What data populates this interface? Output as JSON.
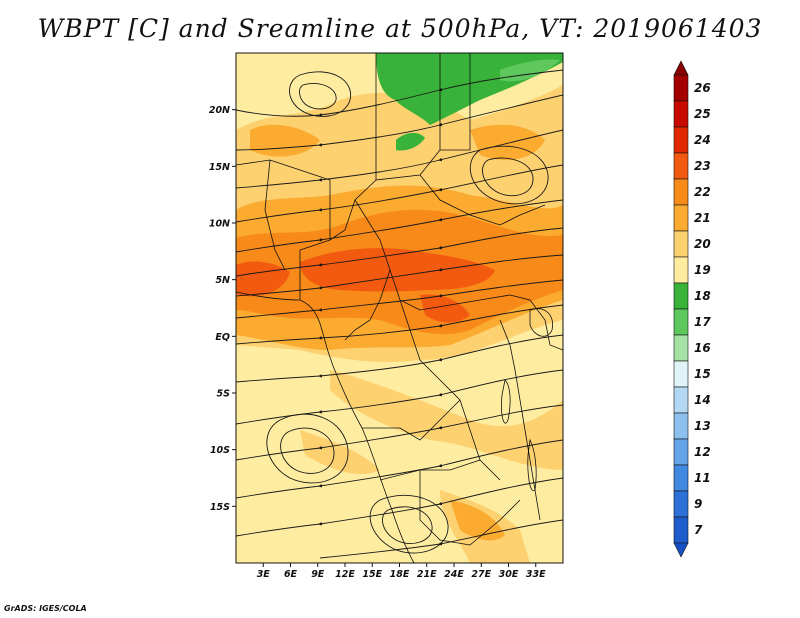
{
  "title": "WBPT [C] and Sreamline at 500hPa, VT: 2019061403",
  "footer": "GrADS: IGES/COLA",
  "map": {
    "lon_range": [
      0,
      36
    ],
    "lat_range": [
      -20,
      25
    ],
    "lat_ticks": [
      {
        "value": 20,
        "label": "20N"
      },
      {
        "value": 15,
        "label": "15N"
      },
      {
        "value": 10,
        "label": "10N"
      },
      {
        "value": 5,
        "label": "5N"
      },
      {
        "value": 0,
        "label": "EQ"
      },
      {
        "value": -5,
        "label": "5S"
      },
      {
        "value": -10,
        "label": "10S"
      },
      {
        "value": -15,
        "label": "15S"
      }
    ],
    "lon_ticks": [
      {
        "value": 3,
        "label": "3E"
      },
      {
        "value": 6,
        "label": "6E"
      },
      {
        "value": 9,
        "label": "9E"
      },
      {
        "value": 12,
        "label": "12E"
      },
      {
        "value": 15,
        "label": "15E"
      },
      {
        "value": 18,
        "label": "18E"
      },
      {
        "value": 21,
        "label": "21E"
      },
      {
        "value": 24,
        "label": "24E"
      },
      {
        "value": 27,
        "label": "27E"
      },
      {
        "value": 30,
        "label": "30E"
      },
      {
        "value": 33,
        "label": "33E"
      }
    ]
  },
  "colorbar": {
    "levels": [
      {
        "label": "26",
        "color": "#a50000"
      },
      {
        "label": "25",
        "color": "#c80a00"
      },
      {
        "label": "24",
        "color": "#e22800"
      },
      {
        "label": "23",
        "color": "#f25a10"
      },
      {
        "label": "22",
        "color": "#f78a18"
      },
      {
        "label": "21",
        "color": "#fbab30"
      },
      {
        "label": "20",
        "color": "#fdd070"
      },
      {
        "label": "19",
        "color": "#feeca0"
      },
      {
        "label": "18",
        "color": "#38b238"
      },
      {
        "label": "17",
        "color": "#5ec85e"
      },
      {
        "label": "16",
        "color": "#a6e2a6"
      },
      {
        "label": "15",
        "color": "#e0f4f8"
      },
      {
        "label": "14",
        "color": "#b4d8f4"
      },
      {
        "label": "13",
        "color": "#8cc0ee"
      },
      {
        "label": "12",
        "color": "#64a4e8"
      },
      {
        "label": "11",
        "color": "#4088e0"
      },
      {
        "label": "9",
        "color": "#2c70d8"
      },
      {
        "label": "7",
        "color": "#1e5ccc"
      }
    ],
    "top_color": "#8a0000",
    "bottom_color": "#1850c4"
  },
  "field_colors": {
    "w19": "#feeca0",
    "w20": "#fdd070",
    "w21": "#fbab30",
    "w22": "#f78a18",
    "w23": "#f25a10",
    "g18": "#38b238",
    "g17": "#5ec85e"
  }
}
